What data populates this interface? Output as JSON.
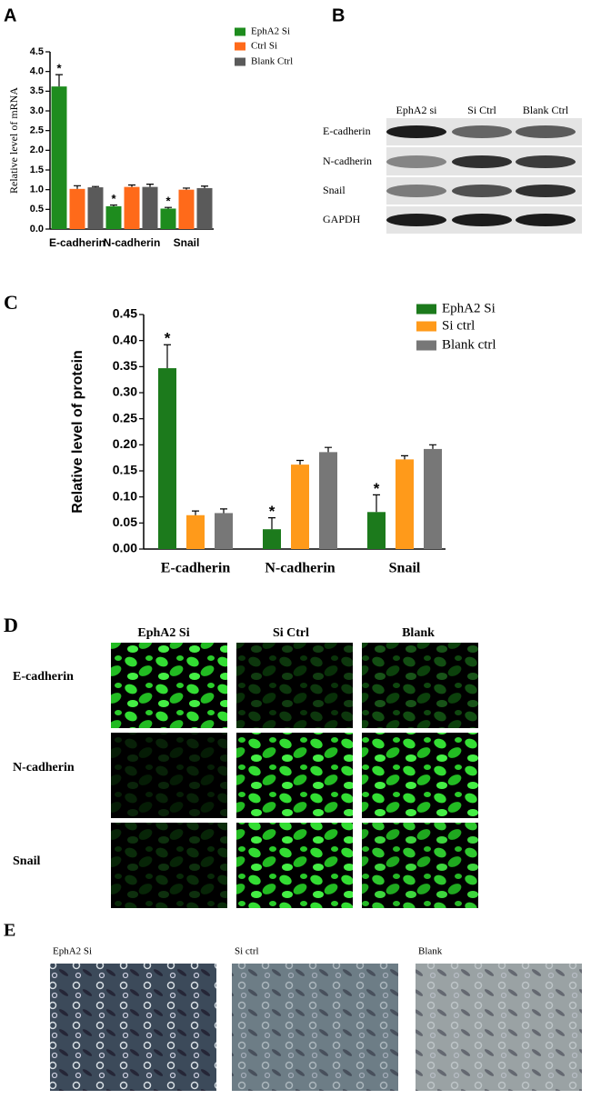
{
  "chart_data": [
    {
      "type": "bar",
      "panel": "A",
      "y_label": "Relative level of mRNA",
      "categories": [
        "E-cadherin",
        "N-cadherin",
        "Snail"
      ],
      "series": [
        {
          "name": "EphA2 Si",
          "color": "#1e8c1e",
          "values": [
            3.62,
            0.58,
            0.52
          ],
          "errors": [
            0.3,
            0.03,
            0.03
          ],
          "annotations": [
            "*",
            "*",
            "*"
          ]
        },
        {
          "name": "Ctrl Si",
          "color": "#ff6a1a",
          "values": [
            1.02,
            1.07,
            1.0
          ],
          "errors": [
            0.08,
            0.05,
            0.04
          ]
        },
        {
          "name": "Blank Ctrl",
          "color": "#5a5a5a",
          "values": [
            1.06,
            1.07,
            1.04
          ],
          "errors": [
            0.02,
            0.07,
            0.05
          ]
        }
      ],
      "ylim": [
        0,
        4.5
      ],
      "yticks": [
        {
          "value": 0,
          "label": "0.0"
        },
        0.5,
        {
          "value": 1,
          "label": "1.0"
        },
        1.5,
        {
          "value": 2,
          "label": "2.0"
        },
        2.5,
        {
          "value": 3,
          "label": "3.0"
        },
        3.5,
        {
          "value": 4,
          "label": "4.0"
        },
        4.5
      ]
    },
    {
      "type": "bar",
      "panel": "C",
      "y_label": "Relative level of protein",
      "categories": [
        "E-cadherin",
        "N-cadherin",
        "Snail"
      ],
      "series": [
        {
          "name": "EphA2 Si",
          "color": "#1c7a1c",
          "values": [
            0.347,
            0.038,
            0.071
          ],
          "errors": [
            0.045,
            0.022,
            0.033
          ],
          "annotations": [
            "*",
            "*",
            "*"
          ]
        },
        {
          "name": "Si ctrl",
          "color": "#ff9a1a",
          "values": [
            0.065,
            0.162,
            0.172
          ],
          "errors": [
            0.008,
            0.008,
            0.007
          ]
        },
        {
          "name": "Blank ctrl",
          "color": "#777777",
          "values": [
            0.069,
            0.186,
            0.192
          ],
          "errors": [
            0.008,
            0.009,
            0.008
          ]
        }
      ],
      "ylim": [
        0,
        0.45
      ],
      "yticks": [
        {
          "value": 0,
          "label": "0.00"
        },
        0.05,
        {
          "value": 0.1,
          "label": "0.10"
        },
        0.15,
        {
          "value": 0.2,
          "label": "0.20"
        },
        0.25,
        {
          "value": 0.3,
          "label": "0.30"
        },
        0.35,
        {
          "value": 0.4,
          "label": "0.40"
        },
        0.45
      ]
    }
  ],
  "blot": {
    "panel": "B",
    "columns": [
      "EphA2 si",
      "Si Ctrl",
      "Blank Ctrl"
    ],
    "rows": [
      "E-cadherin",
      "N-cadherin",
      "Snail",
      "GAPDH"
    ]
  },
  "immunofluorescence": {
    "panel": "D",
    "columns": [
      "EphA2 Si",
      "Si Ctrl",
      "Blank"
    ],
    "rows": [
      "E-cadherin",
      "N-cadherin",
      "Snail"
    ]
  },
  "morphology": {
    "panel": "E",
    "columns": [
      "EphA2 Si",
      "Si ctrl",
      "Blank"
    ]
  }
}
